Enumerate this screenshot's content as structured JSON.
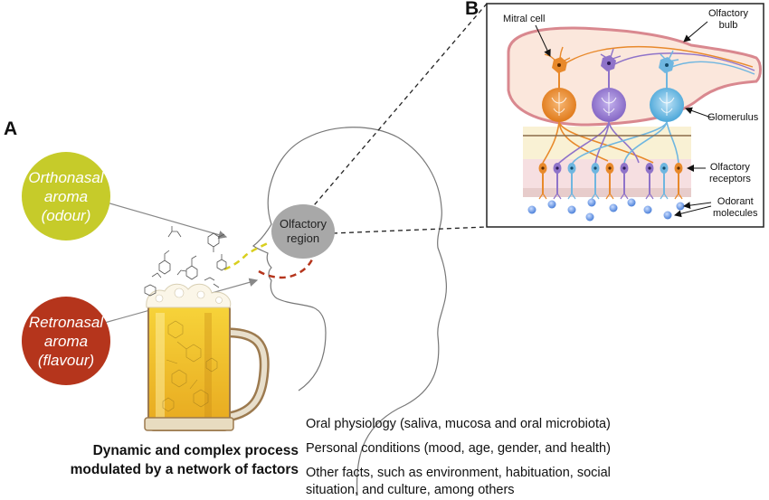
{
  "panel_a": {
    "letter": "A",
    "orthonasal": {
      "line1": "Orthonasal",
      "line2": "aroma",
      "line3": "(odour)",
      "color": "#c6cb2a"
    },
    "retronasal": {
      "line1": "Retronasal",
      "line2": "aroma",
      "line3": "(flavour)",
      "color": "#b5351c"
    },
    "olfactory_region": {
      "line1": "Olfactory",
      "line2": "region",
      "color": "#a8a8a8"
    },
    "process_title": {
      "line1": "Dynamic and complex process",
      "line2": "modulated by a network of factors"
    },
    "factors": [
      "Oral physiology (saliva, mucosa and oral microbiota)",
      "Personal conditions (mood, age, gender, and health)",
      "Other facts, such as environment, habituation, social",
      "situation, and culture, among others"
    ]
  },
  "panel_b": {
    "letter": "B",
    "labels": {
      "mitral_cell": "Mitral cell",
      "olfactory_bulb_1": "Olfactory",
      "olfactory_bulb_2": "bulb",
      "glomerulus": "Glomerulus",
      "olfactory_receptors_1": "Olfactory",
      "olfactory_receptors_2": "receptors",
      "odorant_molecules_1": "Odorant",
      "odorant_molecules_2": "molecules"
    },
    "cell_colors": {
      "orange": "#e8892b",
      "purple": "#8f73c9",
      "blue": "#6fb6e0"
    }
  }
}
